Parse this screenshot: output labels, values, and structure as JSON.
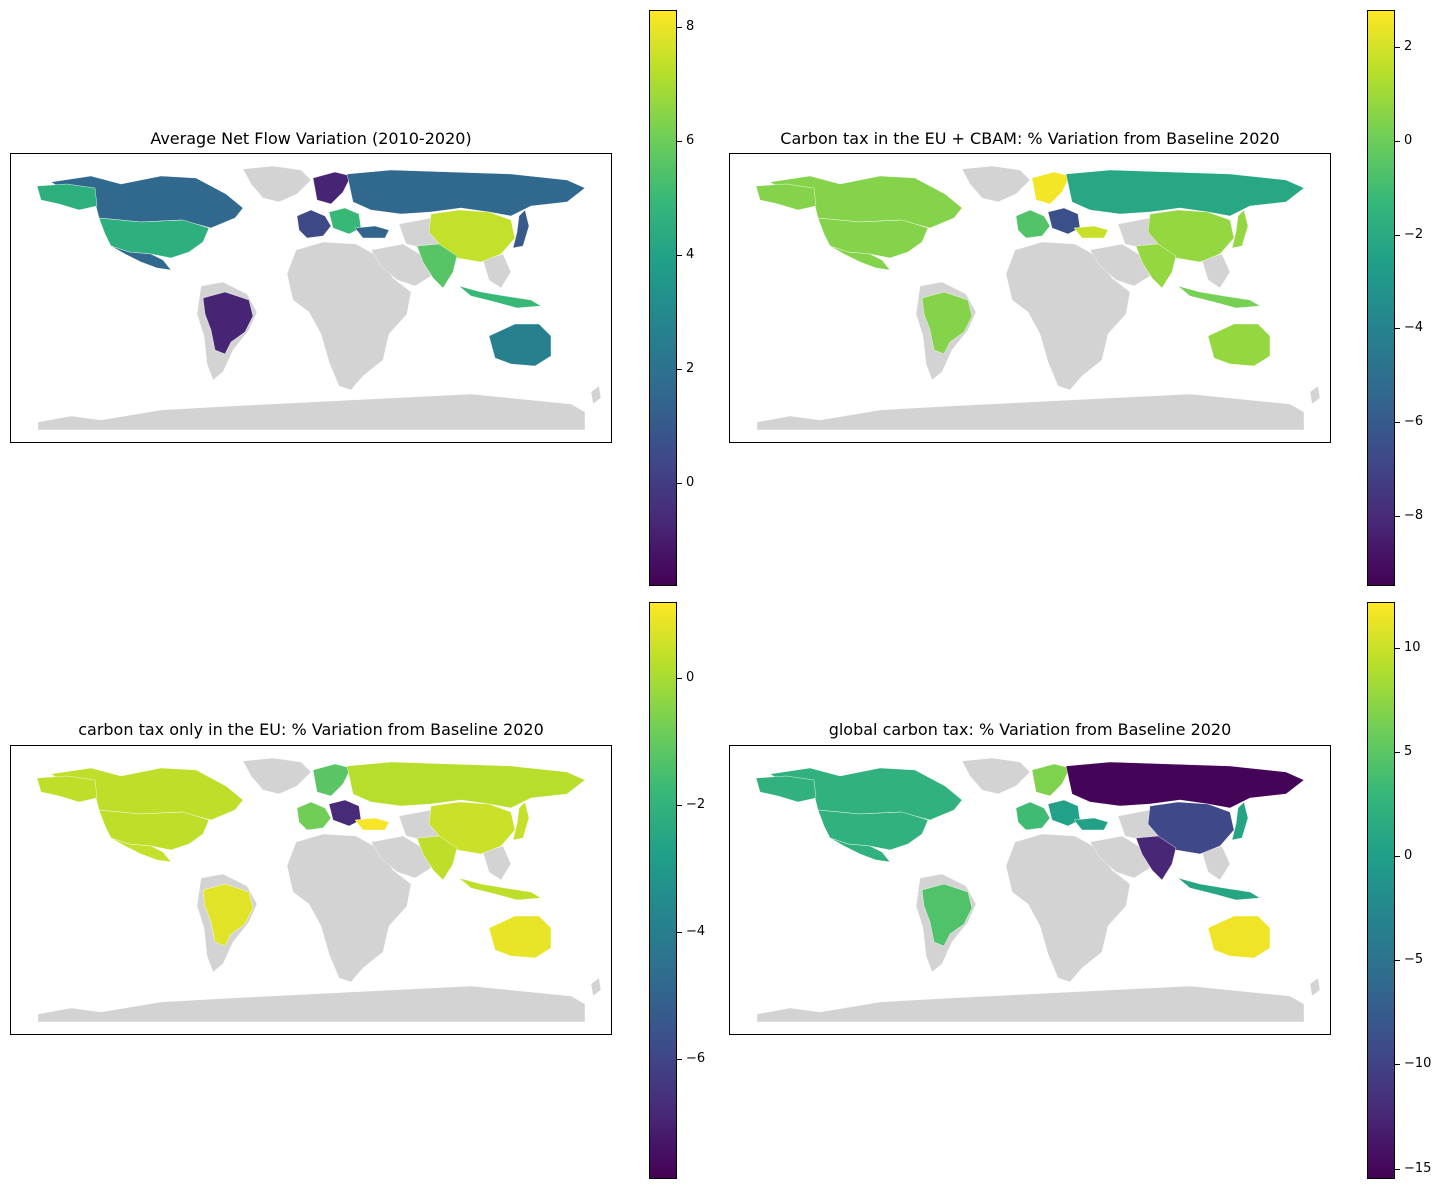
{
  "figure": {
    "colors": {
      "no_data": "#d3d3d3",
      "viridis": [
        "#440154",
        "#482878",
        "#3e4a89",
        "#31688e",
        "#26828e",
        "#1f9e89",
        "#35b779",
        "#6ece58",
        "#b5de2b",
        "#fde725"
      ]
    }
  },
  "panels": [
    {
      "title": "Average Net Flow Variation (2010-2020)",
      "colorbar": {
        "min": -1.8,
        "max": 8.3,
        "ticks": [
          "8",
          "6",
          "4",
          "2",
          "0"
        ],
        "tick_values": [
          8,
          6,
          4,
          2,
          0
        ]
      },
      "regions": {
        "usa": 4.6,
        "canada": 1.6,
        "alaska": 4.6,
        "mexico": 1.6,
        "brazil": -0.8,
        "china": 7.4,
        "india": 5.6,
        "russia": 1.6,
        "japan": 1.0,
        "australia": 2.6,
        "indonesia": 5.0,
        "europe_w": 0.4,
        "europe_n": -0.8,
        "europe_c": 5.0,
        "turkey": 1.4
      }
    },
    {
      "title": "Carbon tax in the EU + CBAM: % Variation from Baseline 2020",
      "colorbar": {
        "min": -9.5,
        "max": 2.8,
        "ticks": [
          "2",
          "0",
          "−2",
          "−4",
          "−6",
          "−8"
        ],
        "tick_values": [
          2,
          0,
          -2,
          -4,
          -6,
          -8
        ]
      },
      "regions": {
        "usa": 0.5,
        "canada": 0.5,
        "alaska": 0.5,
        "mexico": 0.5,
        "brazil": 0.5,
        "china": 0.8,
        "india": 0.8,
        "russia": -2.2,
        "japan": 0.8,
        "australia": 0.8,
        "indonesia": 0.2,
        "europe_w": -0.6,
        "europe_n": 2.6,
        "europe_c": -6.5,
        "turkey": 1.8
      }
    },
    {
      "title": "carbon tax only in the EU: % Variation from Baseline 2020",
      "colorbar": {
        "min": -7.9,
        "max": 1.2,
        "ticks": [
          "0",
          "−2",
          "−4",
          "−6"
        ],
        "tick_values": [
          0,
          -2,
          -4,
          -6
        ]
      },
      "regions": {
        "usa": 0.3,
        "canada": 0.3,
        "alaska": 0.3,
        "mexico": 0.4,
        "brazil": 0.8,
        "china": 0.5,
        "india": 0.3,
        "russia": 0.2,
        "japan": 0.4,
        "australia": 0.9,
        "indonesia": 0.3,
        "europe_w": -0.8,
        "europe_n": -1.2,
        "europe_c": -6.8,
        "turkey": 1.1
      }
    },
    {
      "title": "global carbon tax: % Variation from Baseline 2020",
      "colorbar": {
        "min": -15.5,
        "max": 12.2,
        "ticks": [
          "10",
          "5",
          "0",
          "−5",
          "−10",
          "−15"
        ],
        "tick_values": [
          10,
          5,
          0,
          -5,
          -10,
          -15
        ]
      },
      "regions": {
        "usa": 2.2,
        "canada": 2.2,
        "alaska": 2.2,
        "mexico": 2.2,
        "brazil": 4.4,
        "china": -9.5,
        "india": -12.5,
        "russia": -15.2,
        "japan": 0.8,
        "australia": 11.6,
        "indonesia": 0.8,
        "europe_w": 3.5,
        "europe_n": 6.8,
        "europe_c": 0.2,
        "turkey": 0.3
      }
    }
  ]
}
